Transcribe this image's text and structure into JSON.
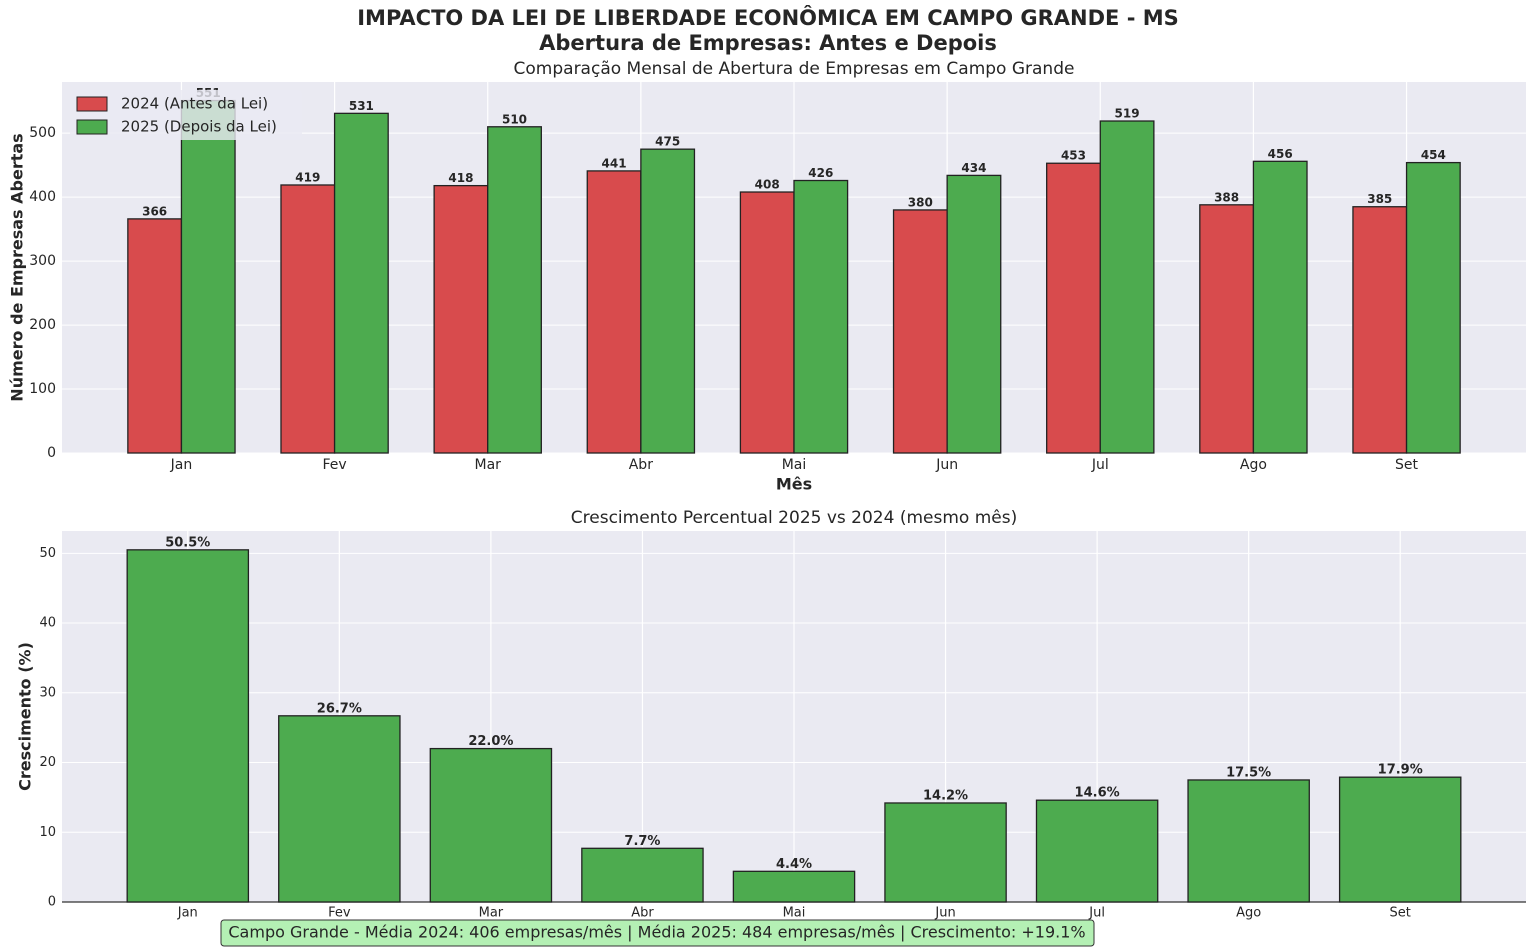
{
  "title": "IMPACTO DA LEI DE LIBERDADE ECONÔMICA EM CAMPO GRANDE - MS",
  "subtitle": "Abertura de Empresas: Antes e Depois",
  "note": "Campo Grande - Média 2024: 406 empresas/mês | Média 2025: 484 empresas/mês | Crescimento: +19.1%",
  "chart_data": [
    {
      "type": "bar",
      "title": "Comparação Mensal de Abertura de Empresas em Campo Grande",
      "xlabel": "Mês",
      "ylabel": "Número de Empresas Abertas",
      "categories": [
        "Jan",
        "Fev",
        "Mar",
        "Abr",
        "Mai",
        "Jun",
        "Jul",
        "Ago",
        "Set"
      ],
      "series": [
        {
          "name": "2024 (Antes da Lei)",
          "color": "#d84b4d",
          "values": [
            366,
            419,
            418,
            441,
            408,
            380,
            453,
            388,
            385
          ]
        },
        {
          "name": "2025 (Depois da Lei)",
          "color": "#4dab4f",
          "values": [
            551,
            531,
            510,
            475,
            426,
            434,
            519,
            456,
            454
          ]
        }
      ],
      "ylim": [
        0,
        580
      ],
      "yticks": [
        0,
        100,
        200,
        300,
        400,
        500
      ],
      "grid": true,
      "legend": "upper left"
    },
    {
      "type": "bar",
      "title": "Crescimento Percentual 2025 vs 2024 (mesmo mês)",
      "xlabel": "Mês",
      "ylabel": "Crescimento (%)",
      "categories": [
        "Jan",
        "Fev",
        "Mar",
        "Abr",
        "Mai",
        "Jun",
        "Jul",
        "Ago",
        "Set"
      ],
      "values": [
        50.5,
        26.7,
        22.0,
        7.7,
        4.4,
        14.2,
        14.6,
        17.5,
        17.9
      ],
      "value_labels": [
        "50.5%",
        "26.7%",
        "22.0%",
        "7.7%",
        "4.4%",
        "14.2%",
        "14.6%",
        "17.5%",
        "17.9%"
      ],
      "color": "#4dab4f",
      "ylim": [
        0,
        53.2
      ],
      "yticks": [
        0,
        10,
        20,
        30,
        40,
        50
      ],
      "grid": true
    }
  ]
}
